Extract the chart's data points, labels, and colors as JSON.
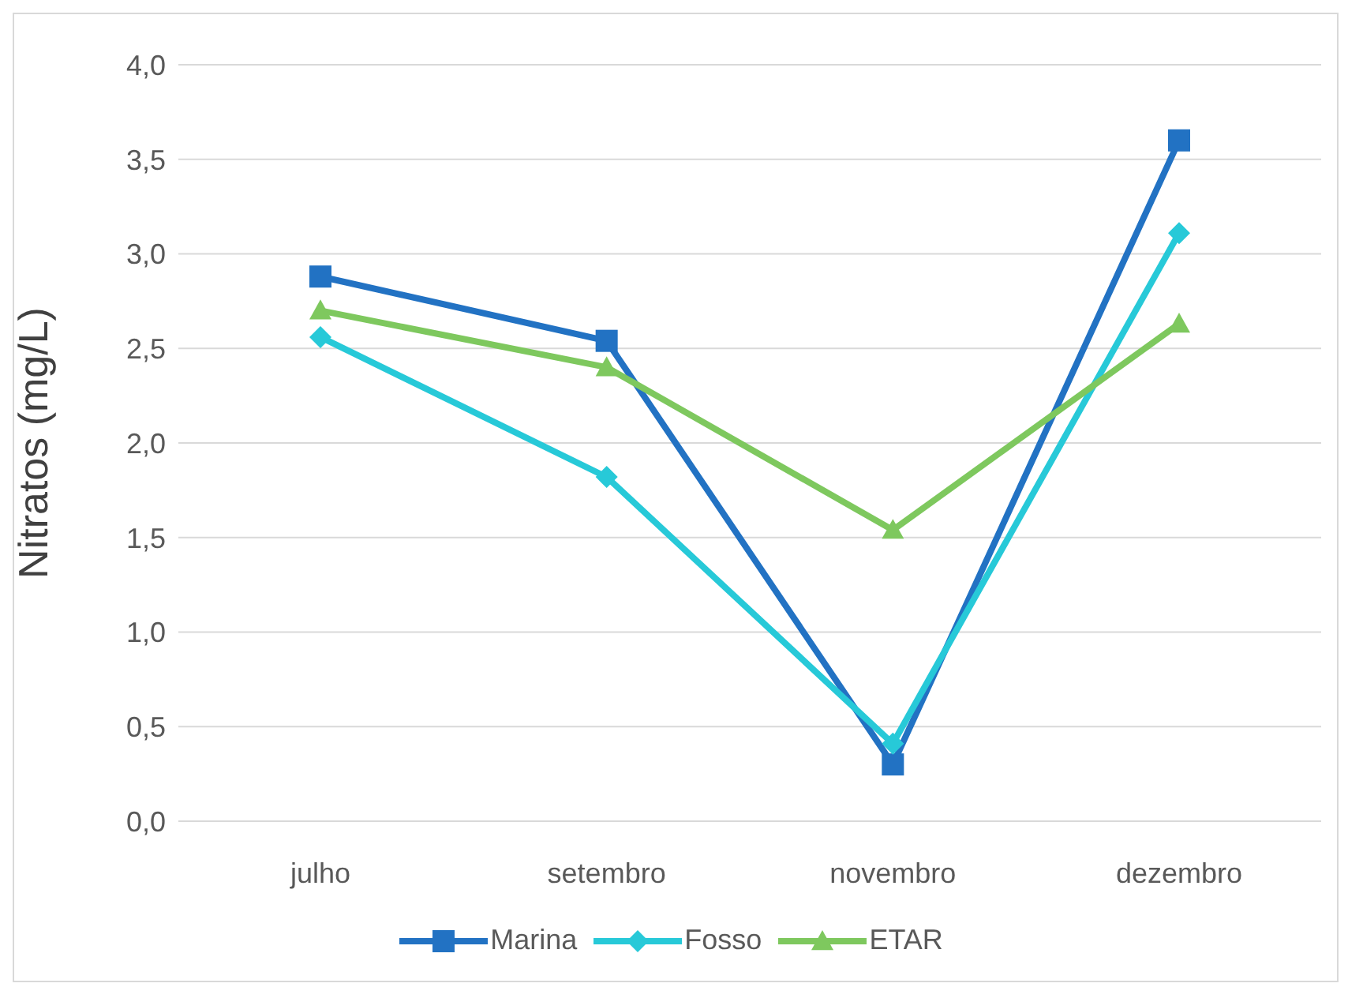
{
  "chart_data": {
    "type": "line",
    "ylabel": "Nitratos (mg/L)",
    "categories": [
      "julho",
      "setembro",
      "novembro",
      "dezembro"
    ],
    "series": [
      {
        "name": "Marina",
        "color": "#2272c3",
        "marker": "square",
        "values": [
          2.88,
          2.54,
          0.3,
          3.6
        ]
      },
      {
        "name": "Fosso",
        "color": "#27c9d8",
        "marker": "diamond",
        "values": [
          2.56,
          1.82,
          0.41,
          3.11
        ]
      },
      {
        "name": "ETAR",
        "color": "#7ec85e",
        "marker": "triangle",
        "values": [
          2.7,
          2.4,
          1.54,
          2.63
        ]
      }
    ],
    "ylim": [
      0,
      4
    ],
    "yticks": [
      {
        "value": 0,
        "label": "0,0"
      },
      {
        "value": 0.5,
        "label": "0,5"
      },
      {
        "value": 1,
        "label": "1,0"
      },
      {
        "value": 1.5,
        "label": "1,5"
      },
      {
        "value": 2,
        "label": "2,0"
      },
      {
        "value": 2.5,
        "label": "2,5"
      },
      {
        "value": 3,
        "label": "3,0"
      },
      {
        "value": 3.5,
        "label": "3,5"
      },
      {
        "value": 4,
        "label": "4,0"
      }
    ],
    "grid": "y",
    "legend": "bottom",
    "line_style": "solid"
  }
}
